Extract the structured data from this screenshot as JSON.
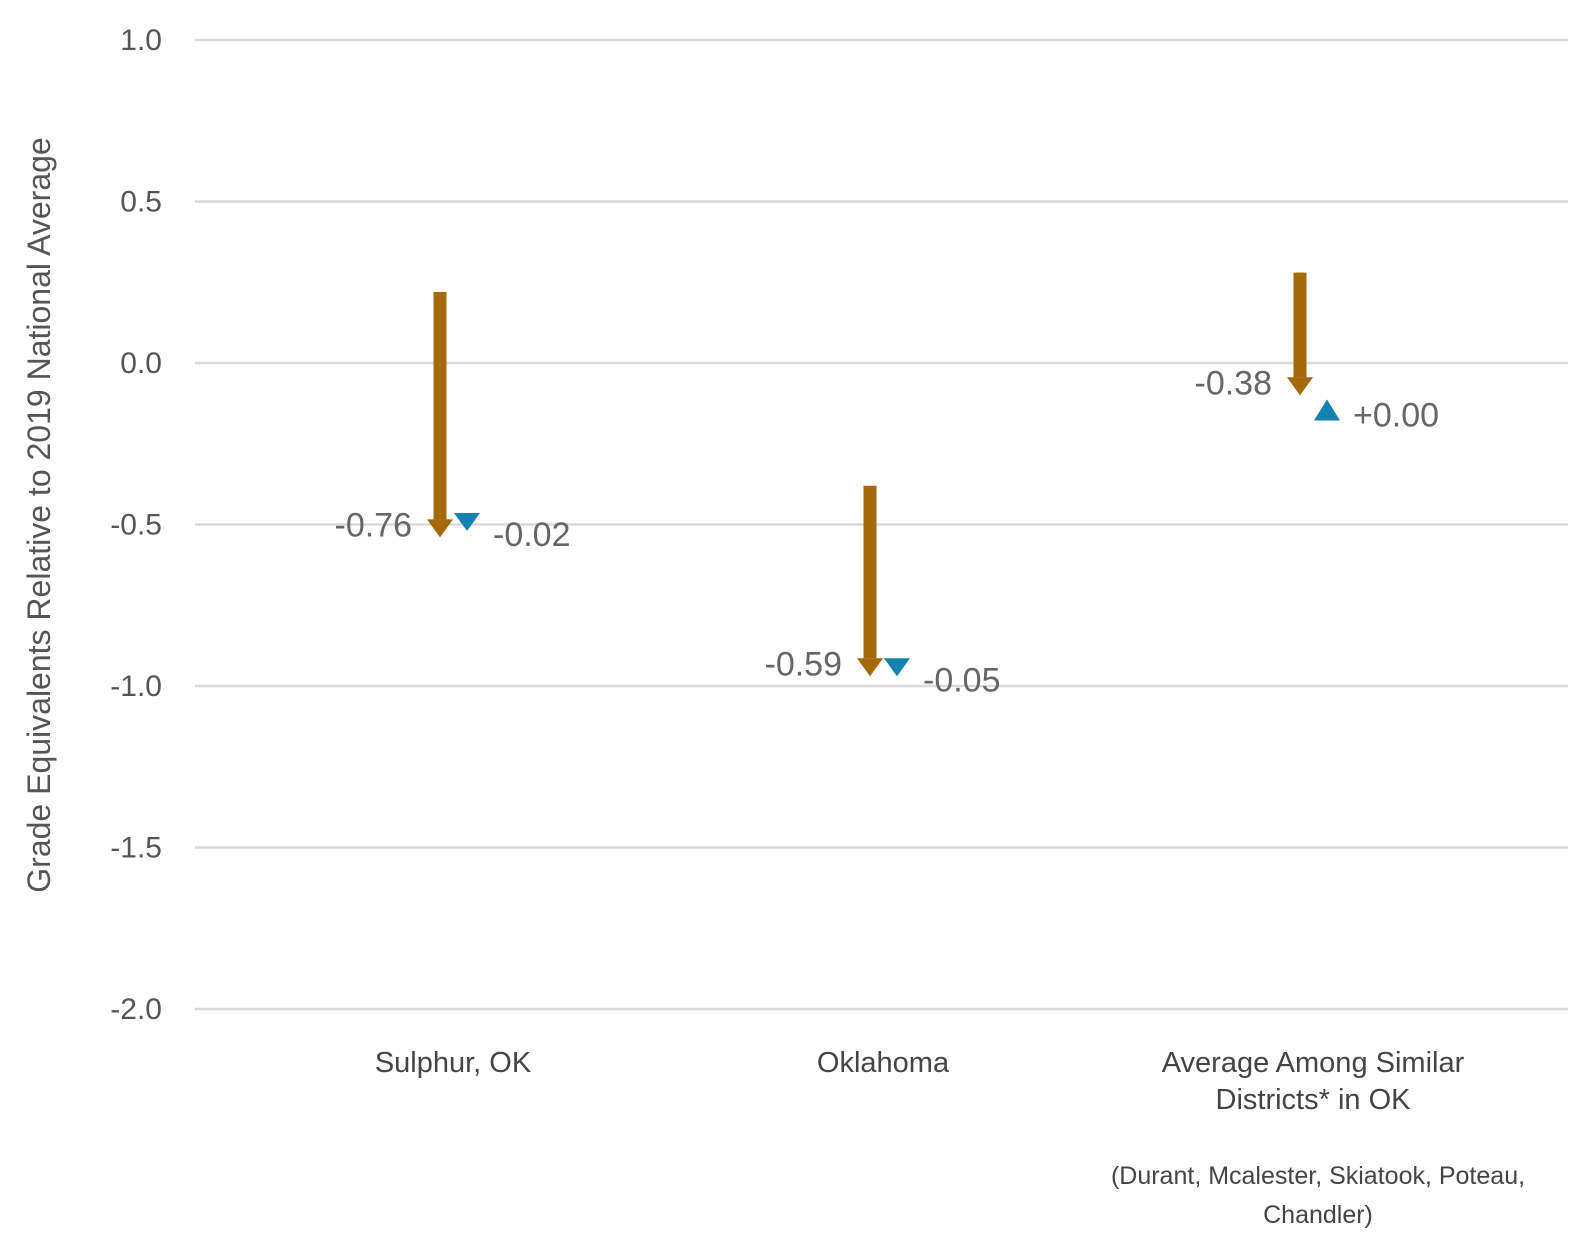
{
  "chart_data": {
    "type": "arrow-change",
    "ylabel": "Grade Equivalents Relative to 2019 National Average",
    "ylim": [
      -2.0,
      1.0
    ],
    "yticks": [
      1.0,
      0.5,
      0.0,
      -0.5,
      -1.0,
      -1.5,
      -2.0
    ],
    "ytick_labels": [
      "1.0",
      "0.5",
      "0.0",
      "-0.5",
      "-1.0",
      "-1.5",
      "-2.0"
    ],
    "grid": true,
    "colors": {
      "drop": "#A5690A",
      "recovery": "#1282AE"
    },
    "categories": [
      {
        "label_lines": [
          "Sulphur, OK"
        ],
        "note_lines": []
      },
      {
        "label_lines": [
          "Oklahoma"
        ],
        "note_lines": []
      },
      {
        "label_lines": [
          "Average Among Similar",
          "Districts* in OK"
        ],
        "note_lines": [
          "(Durant, Mcalester, Skiatook, Poteau,",
          "Chandler)"
        ]
      }
    ],
    "series": [
      {
        "values": [
          {
            "start": 0.22,
            "end": -0.54,
            "label": "-0.76"
          },
          {
            "start": -0.38,
            "end": -0.97,
            "label": "-0.59"
          },
          {
            "start": 0.28,
            "end": -0.1,
            "label": "-0.38"
          }
        ]
      },
      {
        "values": [
          {
            "start": -0.5,
            "end": -0.52,
            "label": "-0.02"
          },
          {
            "start": -0.92,
            "end": -0.97,
            "label": "-0.05"
          },
          {
            "start": -0.15,
            "end": -0.15,
            "label": "+0.00"
          }
        ]
      }
    ]
  }
}
